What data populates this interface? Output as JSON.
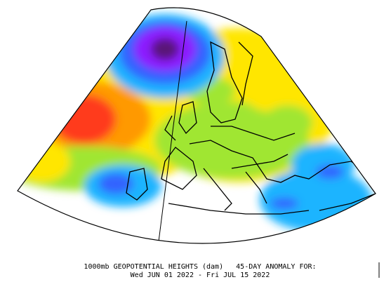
{
  "caption": {
    "line1": "1000mb GEOPOTENTIAL HEIGHTS (dam)   45-DAY ANOMALY FOR:",
    "line2": "Wed JUN 01 2022 - Fri JUL 15 2022"
  }
}
